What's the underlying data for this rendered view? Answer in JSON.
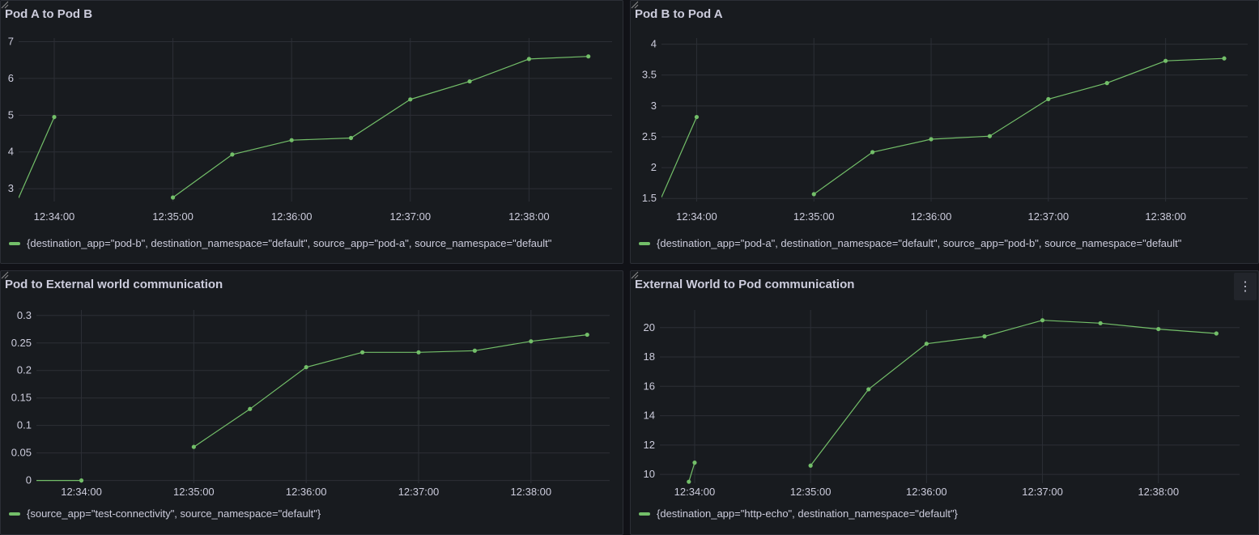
{
  "colors": {
    "series": "#73bf69",
    "grid": "#2c2f36",
    "text": "#ccccdc"
  },
  "chart_data": [
    {
      "type": "line",
      "title": "Pod A to Pod B",
      "x_ticks": [
        "12:34:00",
        "12:35:00",
        "12:36:00",
        "12:37:00",
        "12:38:00"
      ],
      "x_tick_minutes": [
        1,
        2,
        3,
        4,
        5
      ],
      "xlim": [
        0.7,
        5.7
      ],
      "y_ticks": [
        "3",
        "4",
        "5",
        "6",
        "7"
      ],
      "y_tick_values": [
        3,
        4,
        5,
        6,
        7
      ],
      "ylim": [
        2.65,
        7.1
      ],
      "grid": true,
      "legend_position": "bottom",
      "series": [
        {
          "name": "{destination_app=\"pod-b\", destination_namespace=\"default\", source_app=\"pod-a\", source_namespace=\"default\"",
          "segments": [
            [
              [
                0.7,
                2.75
              ],
              [
                1.0,
                4.95
              ]
            ],
            [
              [
                2.0,
                2.76
              ],
              [
                2.5,
                3.93
              ],
              [
                3.0,
                4.32
              ],
              [
                3.5,
                4.38
              ],
              [
                4.0,
                5.43
              ],
              [
                4.5,
                5.92
              ],
              [
                5.0,
                6.53
              ],
              [
                5.5,
                6.6
              ]
            ]
          ]
        }
      ]
    },
    {
      "type": "line",
      "title": "Pod B to Pod A",
      "x_ticks": [
        "12:34:00",
        "12:35:00",
        "12:36:00",
        "12:37:00",
        "12:38:00"
      ],
      "x_tick_minutes": [
        1,
        2,
        3,
        4,
        5
      ],
      "xlim": [
        0.7,
        5.7
      ],
      "y_ticks": [
        "1.5",
        "2",
        "2.5",
        "3",
        "3.5",
        "4"
      ],
      "y_tick_values": [
        1.5,
        2,
        2.5,
        3,
        3.5,
        4
      ],
      "ylim": [
        1.45,
        4.1
      ],
      "grid": true,
      "legend_position": "bottom",
      "series": [
        {
          "name": "{destination_app=\"pod-a\", destination_namespace=\"default\", source_app=\"pod-b\", source_namespace=\"default\"",
          "segments": [
            [
              [
                0.7,
                1.52
              ],
              [
                1.0,
                2.82
              ]
            ],
            [
              [
                2.0,
                1.57
              ],
              [
                2.5,
                2.25
              ],
              [
                3.0,
                2.46
              ],
              [
                3.5,
                2.51
              ],
              [
                4.0,
                3.11
              ],
              [
                4.5,
                3.37
              ],
              [
                5.0,
                3.73
              ],
              [
                5.5,
                3.77
              ]
            ]
          ]
        }
      ]
    },
    {
      "type": "line",
      "title": "Pod to External world communication",
      "x_ticks": [
        "12:34:00",
        "12:35:00",
        "12:36:00",
        "12:37:00",
        "12:38:00"
      ],
      "x_tick_minutes": [
        1,
        2,
        3,
        4,
        5
      ],
      "xlim": [
        0.6,
        5.7
      ],
      "y_ticks": [
        "0",
        "0.05",
        "0.1",
        "0.15",
        "0.2",
        "0.25",
        "0.3"
      ],
      "y_tick_values": [
        0,
        0.05,
        0.1,
        0.15,
        0.2,
        0.25,
        0.3
      ],
      "ylim": [
        -0.005,
        0.31
      ],
      "grid": true,
      "legend_position": "bottom",
      "series": [
        {
          "name": "{source_app=\"test-connectivity\", source_namespace=\"default\"}",
          "segments": [
            [
              [
                0.6,
                0
              ],
              [
                1.0,
                0
              ]
            ],
            [
              [
                2.0,
                0.061
              ],
              [
                2.5,
                0.13
              ],
              [
                3.0,
                0.206
              ],
              [
                3.5,
                0.233
              ],
              [
                4.0,
                0.233
              ],
              [
                4.5,
                0.236
              ],
              [
                5.0,
                0.253
              ],
              [
                5.5,
                0.265
              ]
            ]
          ]
        }
      ]
    },
    {
      "type": "line",
      "title": "External World to Pod communication",
      "x_ticks": [
        "12:34:00",
        "12:35:00",
        "12:36:00",
        "12:37:00",
        "12:38:00"
      ],
      "x_tick_minutes": [
        1,
        2,
        3,
        4,
        5
      ],
      "xlim": [
        0.7,
        5.7
      ],
      "y_ticks": [
        "10",
        "12",
        "14",
        "16",
        "18",
        "20"
      ],
      "y_tick_values": [
        10,
        12,
        14,
        16,
        18,
        20
      ],
      "ylim": [
        9.4,
        21.2
      ],
      "grid": true,
      "legend_position": "bottom",
      "series": [
        {
          "name": "{destination_app=\"http-echo\", destination_namespace=\"default\"}",
          "segments": [
            [
              [
                0.95,
                9.5
              ],
              [
                1.0,
                10.8
              ]
            ],
            [
              [
                2.0,
                10.6
              ],
              [
                2.5,
                15.8
              ],
              [
                3.0,
                18.9
              ],
              [
                3.5,
                19.4
              ],
              [
                4.0,
                20.5
              ],
              [
                4.5,
                20.3
              ],
              [
                5.0,
                19.9
              ],
              [
                5.5,
                19.6
              ]
            ]
          ]
        }
      ]
    }
  ]
}
